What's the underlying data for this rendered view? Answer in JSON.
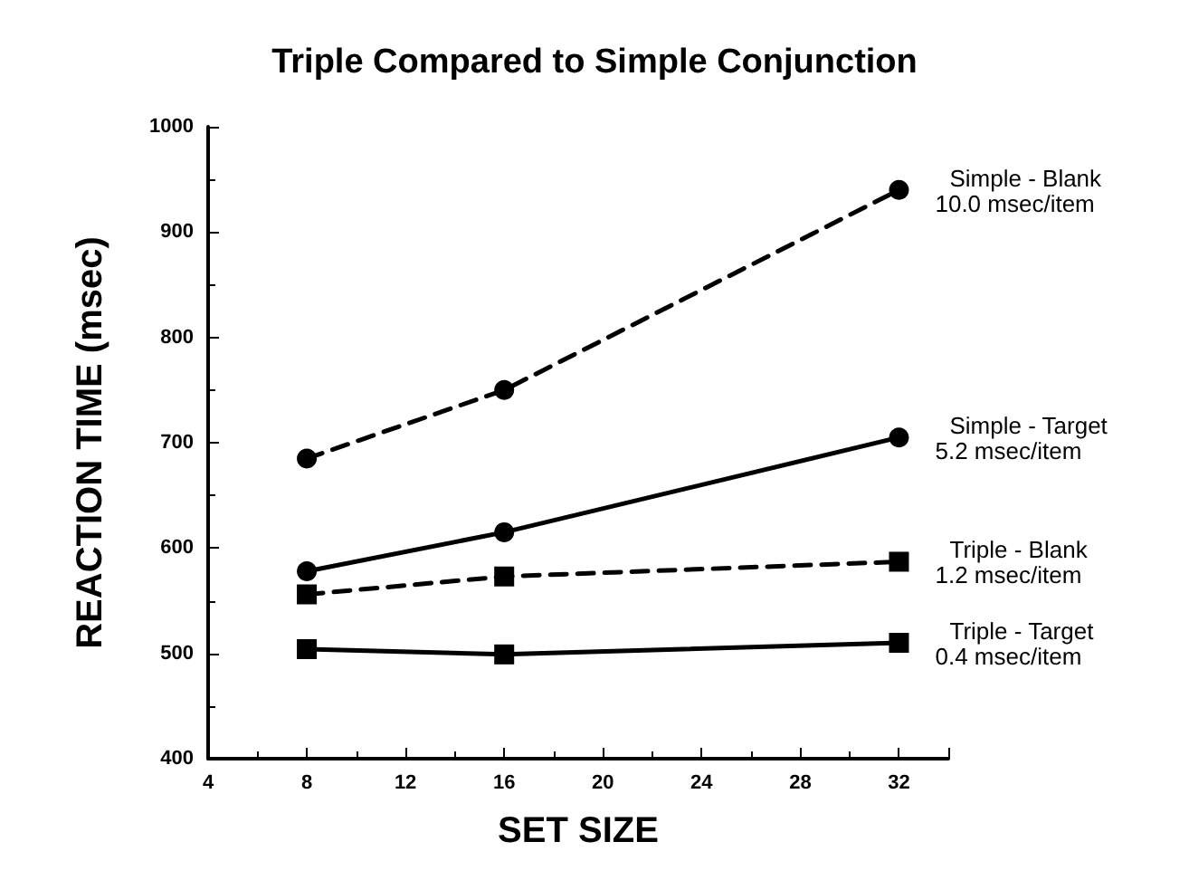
{
  "chart_data": {
    "type": "line",
    "title": "Triple Compared to Simple Conjunction",
    "xlabel": "SET SIZE",
    "ylabel": "REACTION TIME (msec)",
    "x": [
      8,
      16,
      32
    ],
    "xlim": [
      4,
      34
    ],
    "xticks": [
      4,
      8,
      12,
      16,
      20,
      24,
      28,
      32
    ],
    "ylim": [
      400,
      1000
    ],
    "yticks": [
      400,
      500,
      600,
      700,
      800,
      900,
      1000
    ],
    "grid": false,
    "legend": false,
    "series": [
      {
        "name": "Simple - Blank",
        "color": "#000000",
        "marker": "circle",
        "line_style": "dashed",
        "values": [
          685,
          750,
          940
        ]
      },
      {
        "name": "Simple - Target",
        "color": "#000000",
        "marker": "circle",
        "line_style": "solid",
        "values": [
          578,
          615,
          705
        ]
      },
      {
        "name": "Triple - Blank",
        "color": "#000000",
        "marker": "square",
        "line_style": "dashed",
        "values": [
          556,
          573,
          587
        ]
      },
      {
        "name": "Triple - Target",
        "color": "#000000",
        "marker": "square",
        "line_style": "solid",
        "values": [
          504,
          499,
          510
        ]
      }
    ],
    "annotations": [
      "10.0 msec/item",
      "5.2 msec/item",
      "1.2 msec/item",
      "0.4 msec/item"
    ]
  }
}
